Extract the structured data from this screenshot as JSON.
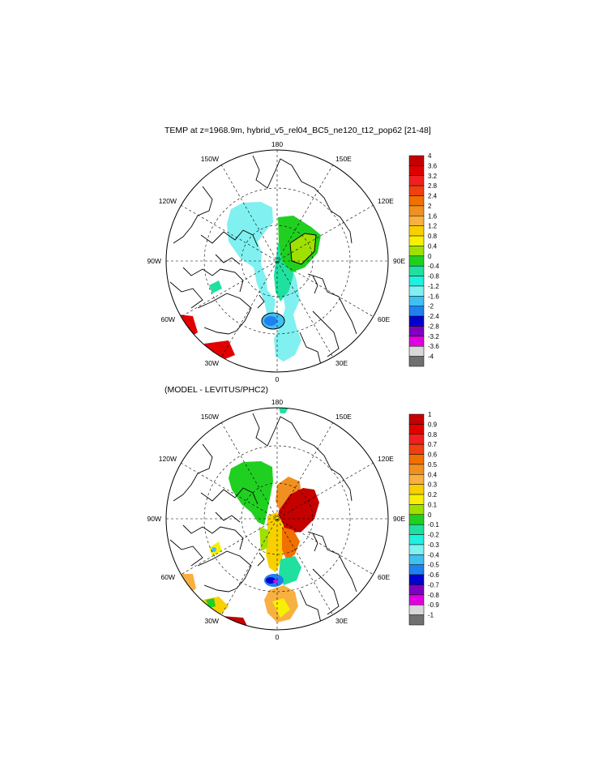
{
  "panels": [
    {
      "title": "TEMP at z=1968.9m, hybrid_v5_rel04_BC5_ne120_t12_pop62 [21-48]",
      "lon_labels": {
        "top": "180",
        "bottom": "0",
        "left": "90W",
        "right": "90E",
        "ul1": "150W",
        "ul2": "120W",
        "ur1": "150E",
        "ur2": "120E",
        "ll1": "60W",
        "ll2": "30W",
        "lr1": "60E",
        "lr2": "30E"
      },
      "colorbar": {
        "labels": [
          "4",
          "3.6",
          "3.2",
          "2.8",
          "2.4",
          "2",
          "1.6",
          "1.2",
          "0.8",
          "0.4",
          "0",
          "-0.4",
          "-0.8",
          "-1.2",
          "-1.6",
          "-2",
          "-2.4",
          "-2.8",
          "-3.2",
          "-3.6",
          "-4"
        ],
        "colors": [
          "#c40000",
          "#e00000",
          "#f02020",
          "#f04010",
          "#f07000",
          "#f09020",
          "#f8b040",
          "#f8d000",
          "#f8f000",
          "#a0e000",
          "#20d020",
          "#20e0a0",
          "#20f0e0",
          "#80f0f0",
          "#40c0f0",
          "#2080f0",
          "#0000d0",
          "#8000c0",
          "#e000e0",
          "#d8d8d8",
          "#707070"
        ]
      }
    },
    {
      "title": "(MODEL - LEVITUS/PHC2)",
      "lon_labels": {
        "top": "180",
        "bottom": "0",
        "left": "90W",
        "right": "90E",
        "ul1": "150W",
        "ul2": "120W",
        "ur1": "150E",
        "ur2": "120E",
        "ll1": "60W",
        "ll2": "30W",
        "lr1": "60E",
        "lr2": "30E"
      },
      "colorbar": {
        "labels": [
          "1",
          "0.9",
          "0.8",
          "0.7",
          "0.6",
          "0.5",
          "0.4",
          "0.3",
          "0.2",
          "0.1",
          "0",
          "-0.1",
          "-0.2",
          "-0.3",
          "-0.4",
          "-0.5",
          "-0.6",
          "-0.7",
          "-0.8",
          "-0.9",
          "-1"
        ],
        "colors": [
          "#c40000",
          "#e00000",
          "#f02020",
          "#f04010",
          "#f07000",
          "#f09020",
          "#f8b040",
          "#f8d000",
          "#f8f000",
          "#a0e000",
          "#20d020",
          "#20e0a0",
          "#20f0e0",
          "#80f0f0",
          "#40c0f0",
          "#2080f0",
          "#0000d0",
          "#8000c0",
          "#e000e0",
          "#d8d8d8",
          "#707070"
        ]
      }
    }
  ]
}
